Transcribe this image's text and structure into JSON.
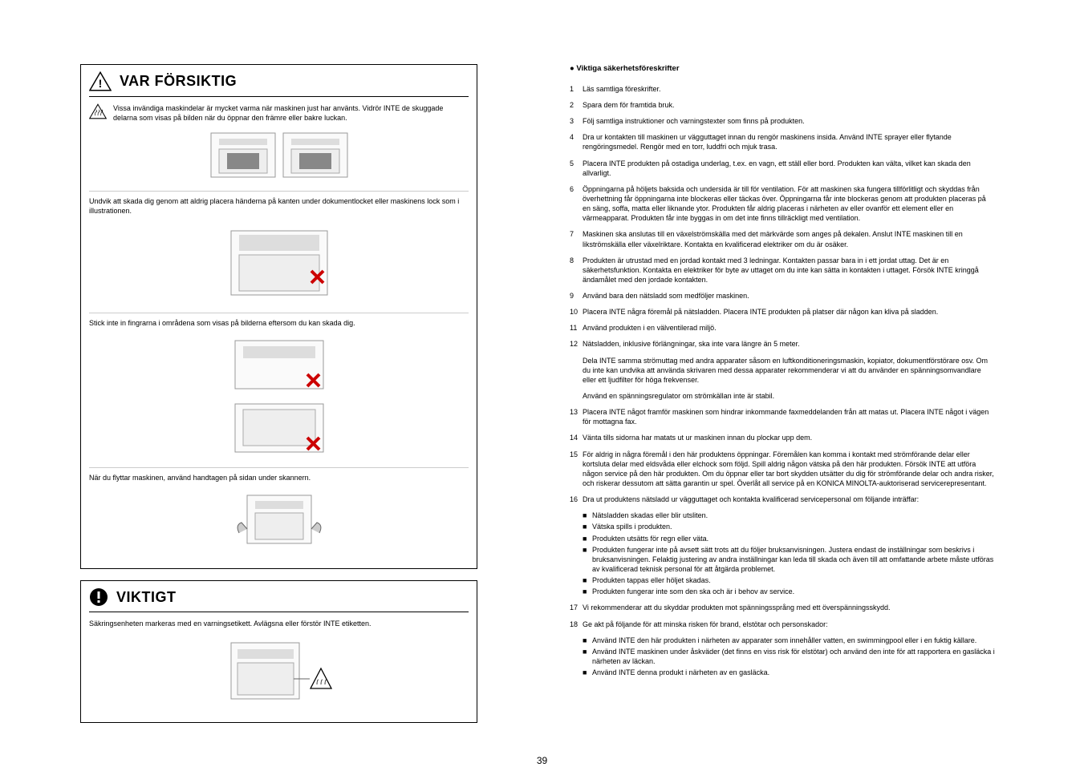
{
  "left": {
    "caution": {
      "title": "VAR FÖRSIKTIG",
      "p1": "Vissa invändiga maskindelar är mycket varma när maskinen just har använts. Vidrör INTE de skuggade delarna som visas på bilden när du öppnar den främre eller bakre luckan.",
      "p2": "Undvik att skada dig genom att aldrig placera händerna på kanten under dokumentlocket eller maskinens lock som i illustrationen.",
      "p3": "Stick inte in fingrarna i områdena som visas på bilderna eftersom du kan skada dig.",
      "p4": "När du flyttar maskinen, använd handtagen på sidan under skannern."
    },
    "important": {
      "title": "VIKTIGT",
      "p1": "Säkringsenheten markeras med en varningsetikett. Avlägsna eller förstör INTE etiketten."
    }
  },
  "right": {
    "header": "● Viktiga säkerhetsföreskrifter",
    "items": [
      {
        "n": "1",
        "t": "Läs samtliga föreskrifter."
      },
      {
        "n": "2",
        "t": "Spara dem för framtida bruk."
      },
      {
        "n": "3",
        "t": "Följ samtliga instruktioner och varningstexter som finns på produkten."
      },
      {
        "n": "4",
        "t": "Dra ur kontakten till maskinen ur vägguttaget innan du rengör maskinens insida. Använd INTE sprayer eller flytande rengöringsmedel. Rengör med en torr, luddfri och mjuk trasa."
      },
      {
        "n": "5",
        "t": "Placera INTE produkten på ostadiga underlag, t.ex. en vagn, ett ställ eller bord. Produkten kan välta, vilket kan skada den allvarligt."
      },
      {
        "n": "6",
        "t": "Öppningarna på höljets baksida och undersida är till för ventilation. För att maskinen ska fungera tillförlitligt och skyddas från överhettning får öppningarna inte blockeras eller täckas över. Öppningarna får inte blockeras genom att produkten placeras på en säng, soffa, matta eller liknande ytor. Produkten får aldrig placeras i närheten av eller ovanför ett element eller en värmeapparat. Produkten får inte byggas in om det inte finns tillräckligt med ventilation."
      },
      {
        "n": "7",
        "t": "Maskinen ska anslutas till en växelströmskälla med det märkvärde som anges på dekalen. Anslut INTE maskinen till en likströmskälla eller växelriktare. Kontakta en kvalificerad elektriker om du är osäker."
      },
      {
        "n": "8",
        "t": "Produkten är utrustad med en jordad kontakt med 3 ledningar. Kontakten passar bara in i ett jordat uttag. Det är en säkerhetsfunktion. Kontakta en elektriker för byte av uttaget om du inte kan sätta in kontakten i uttaget. Försök INTE kringgå ändamålet med den jordade kontakten."
      },
      {
        "n": "9",
        "t": "Använd bara den nätsladd som medföljer maskinen."
      },
      {
        "n": "10",
        "t": "Placera INTE några föremål på nätsladden. Placera INTE produkten på platser där någon kan kliva på sladden."
      },
      {
        "n": "11",
        "t": "Använd produkten i en välventilerad miljö."
      },
      {
        "n": "12",
        "t": "Nätsladden, inklusive förlängningar, ska inte vara längre än 5 meter."
      }
    ],
    "sub12a": "Dela INTE samma strömuttag med andra apparater såsom en luftkonditioneringsmaskin, kopiator, dokumentförstörare osv. Om du inte kan undvika att använda skrivaren med dessa apparater rekommenderar vi att du använder en spänningsomvandlare eller ett ljudfilter för höga frekvenser.",
    "sub12b": "Använd en spänningsregulator om strömkällan inte är stabil.",
    "items2": [
      {
        "n": "13",
        "t": "Placera INTE något framför maskinen som hindrar inkommande faxmeddelanden från att matas ut. Placera INTE något i vägen för mottagna fax."
      },
      {
        "n": "14",
        "t": "Vänta tills sidorna har matats ut ur maskinen innan du plockar upp dem."
      },
      {
        "n": "15",
        "t": "För aldrig in några föremål i den här produktens öppningar. Föremålen kan komma i kontakt med strömförande delar eller kortsluta delar med eldsvåda eller elchock som följd. Spill aldrig någon vätska på den här produkten. Försök INTE att utföra någon service på den här produkten. Om du öppnar eller tar bort skydden utsätter du dig för strömförande delar och andra risker, och riskerar dessutom att sätta garantin ur spel. Överlåt all service på en KONICA MINOLTA-auktoriserad servicerepresentant."
      },
      {
        "n": "16",
        "t": "Dra ut produktens nätsladd ur vägguttaget och kontakta kvalificerad servicepersonal om följande inträffar:"
      }
    ],
    "bullets16": [
      "Nätsladden skadas eller blir utsliten.",
      "Vätska spills i produkten.",
      "Produkten utsätts för regn eller väta.",
      "Produkten fungerar inte på avsett sätt trots att du följer bruksanvisningen. Justera endast de inställningar som beskrivs i bruksanvisningen. Felaktig justering av andra inställningar kan leda till skada och även till att omfattande arbete måste utföras av kvalificerad teknisk personal för att åtgärda problemet.",
      "Produkten tappas eller höljet skadas.",
      "Produkten fungerar inte som den ska och är i behov av service."
    ],
    "items3": [
      {
        "n": "17",
        "t": "Vi rekommenderar att du skyddar produkten mot spänningssprång med ett överspänningsskydd."
      },
      {
        "n": "18",
        "t": "Ge akt på följande för att minska risken för brand, elstötar och personskador:"
      }
    ],
    "bullets18": [
      "Använd INTE den här produkten i närheten av apparater som innehåller vatten, en swimmingpool eller i en fuktig källare.",
      "Använd INTE maskinen under åskväder (det finns en viss risk för elstötar) och använd den inte för att rapportera en gasläcka i närheten av läckan.",
      "Använd INTE denna produkt i närheten av en gasläcka."
    ]
  },
  "page_number": "39"
}
